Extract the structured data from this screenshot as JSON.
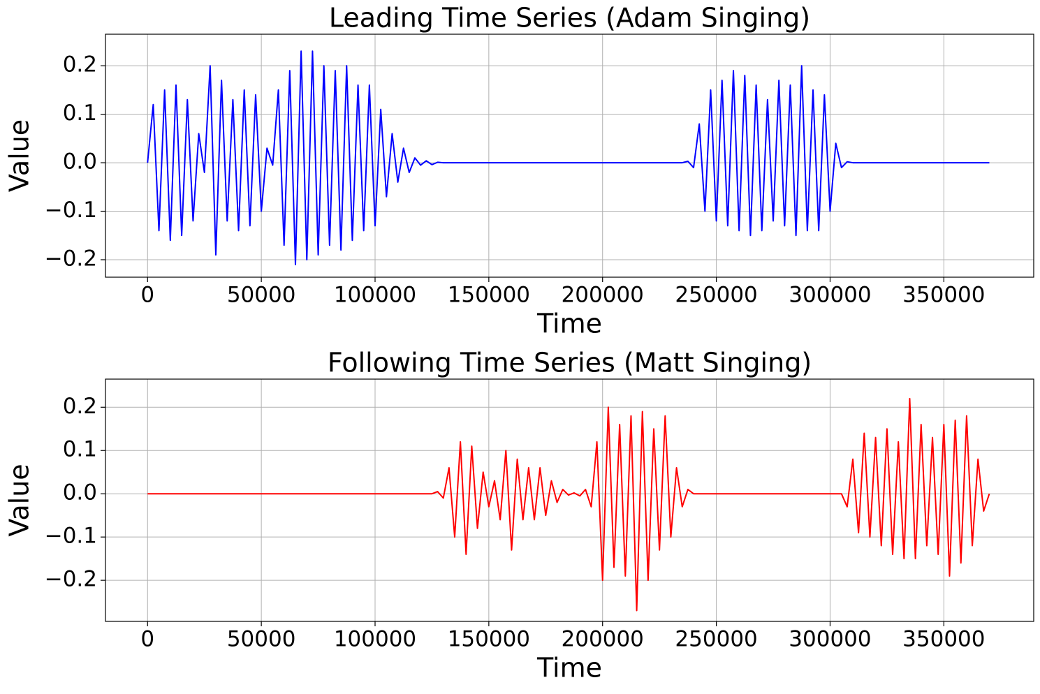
{
  "chart_data": [
    {
      "type": "line",
      "title": "Leading Time Series (Adam Singing)",
      "xlabel": "Time",
      "ylabel": "Value",
      "color": "#0000ff",
      "grid": true,
      "xlim": [
        -18500,
        389500
      ],
      "ylim": [
        -0.236,
        0.265
      ],
      "xticks": [
        0,
        50000,
        100000,
        150000,
        200000,
        250000,
        300000,
        350000
      ],
      "yticks": [
        {
          "value": -0.2,
          "label": "−0.2"
        },
        {
          "value": -0.1,
          "label": "−0.1"
        },
        {
          "value": 0,
          "label": "0.0"
        },
        0.1,
        0.2
      ],
      "x": [
        0,
        2500,
        5000,
        7500,
        10000,
        12500,
        15000,
        17500,
        20000,
        22500,
        25000,
        27500,
        30000,
        32500,
        35000,
        37500,
        40000,
        42500,
        45000,
        47500,
        50000,
        52500,
        55000,
        57500,
        60000,
        62500,
        65000,
        67500,
        70000,
        72500,
        75000,
        77500,
        80000,
        82500,
        85000,
        87500,
        90000,
        92500,
        95000,
        97500,
        100000,
        102500,
        105000,
        107500,
        110000,
        112500,
        115000,
        117500,
        120000,
        122500,
        125000,
        127500,
        130000,
        235000,
        237500,
        240000,
        242500,
        245000,
        247500,
        250000,
        252500,
        255000,
        257500,
        260000,
        262500,
        265000,
        267500,
        270000,
        272500,
        275000,
        277500,
        280000,
        282500,
        285000,
        287500,
        290000,
        292500,
        295000,
        297500,
        300000,
        302500,
        305000,
        307500,
        310000,
        370000
      ],
      "values": [
        0,
        0.12,
        -0.14,
        0.15,
        -0.16,
        0.16,
        -0.15,
        0.13,
        -0.12,
        0.06,
        -0.02,
        0.2,
        -0.19,
        0.17,
        -0.12,
        0.13,
        -0.14,
        0.15,
        -0.13,
        0.14,
        -0.1,
        0.03,
        -0.005,
        0.15,
        -0.17,
        0.19,
        -0.21,
        0.23,
        -0.2,
        0.23,
        -0.19,
        0.2,
        -0.17,
        0.19,
        -0.18,
        0.2,
        -0.16,
        0.16,
        -0.14,
        0.16,
        -0.13,
        0.11,
        -0.07,
        0.06,
        -0.04,
        0.03,
        -0.02,
        0.01,
        -0.005,
        0.004,
        -0.004,
        0.001,
        0,
        0,
        0.003,
        -0.01,
        0.08,
        -0.1,
        0.15,
        -0.12,
        0.17,
        -0.13,
        0.19,
        -0.14,
        0.18,
        -0.15,
        0.16,
        -0.14,
        0.13,
        -0.12,
        0.17,
        -0.13,
        0.16,
        -0.15,
        0.2,
        -0.14,
        0.15,
        -0.14,
        0.14,
        -0.1,
        0.04,
        -0.01,
        0.002,
        0,
        0
      ]
    },
    {
      "type": "line",
      "title": "Following Time Series (Matt Singing)",
      "xlabel": "Time",
      "ylabel": "Value",
      "color": "#ff0000",
      "grid": true,
      "xlim": [
        -18500,
        389500
      ],
      "ylim": [
        -0.295,
        0.265
      ],
      "xticks": [
        0,
        50000,
        100000,
        150000,
        200000,
        250000,
        300000,
        350000
      ],
      "yticks": [
        {
          "value": -0.2,
          "label": "−0.2"
        },
        {
          "value": -0.1,
          "label": "−0.1"
        },
        {
          "value": 0,
          "label": "0.0"
        },
        0.1,
        0.2
      ],
      "x": [
        0,
        125000,
        127500,
        130000,
        132500,
        135000,
        137500,
        140000,
        142500,
        145000,
        147500,
        150000,
        152500,
        155000,
        157500,
        160000,
        162500,
        165000,
        167500,
        170000,
        172500,
        175000,
        177500,
        180000,
        182500,
        185000,
        187500,
        190000,
        192500,
        195000,
        197500,
        200000,
        202500,
        205000,
        207500,
        210000,
        212500,
        215000,
        217500,
        220000,
        222500,
        225000,
        227500,
        230000,
        232500,
        235000,
        237500,
        240000,
        305000,
        307500,
        310000,
        312500,
        315000,
        317500,
        320000,
        322500,
        325000,
        327500,
        330000,
        332500,
        335000,
        337500,
        340000,
        342500,
        345000,
        347500,
        350000,
        352500,
        355000,
        357500,
        360000,
        362500,
        365000,
        367500,
        370000
      ],
      "values": [
        0,
        0,
        0.005,
        -0.01,
        0.06,
        -0.1,
        0.12,
        -0.14,
        0.11,
        -0.08,
        0.05,
        -0.03,
        0.03,
        -0.06,
        0.1,
        -0.13,
        0.08,
        -0.06,
        0.06,
        -0.06,
        0.06,
        -0.05,
        0.03,
        -0.02,
        0.01,
        -0.003,
        0.002,
        -0.005,
        0.01,
        -0.03,
        0.12,
        -0.2,
        0.2,
        -0.17,
        0.16,
        -0.19,
        0.18,
        -0.27,
        0.19,
        -0.2,
        0.15,
        -0.13,
        0.18,
        -0.1,
        0.06,
        -0.03,
        0.01,
        0,
        0,
        -0.03,
        0.08,
        -0.09,
        0.14,
        -0.1,
        0.13,
        -0.12,
        0.15,
        -0.14,
        0.12,
        -0.15,
        0.22,
        -0.15,
        0.16,
        -0.12,
        0.13,
        -0.14,
        0.16,
        -0.19,
        0.17,
        -0.16,
        0.18,
        -0.12,
        0.08,
        -0.04,
        0
      ]
    }
  ]
}
